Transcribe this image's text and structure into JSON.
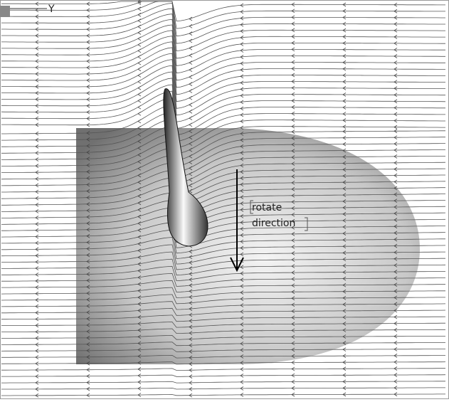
{
  "axis": {
    "label": "Y"
  },
  "annotation": {
    "lines": [
      "rotate",
      "direction"
    ]
  }
}
